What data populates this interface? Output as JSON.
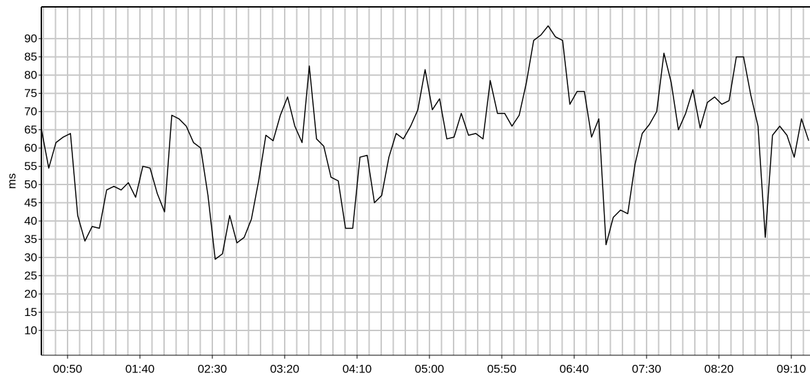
{
  "chart_data": {
    "type": "line",
    "y_label": "ms",
    "color": "#000000",
    "grid": true,
    "xlim": [
      31.9,
      562.9
    ],
    "ylim": [
      3.2,
      98.7
    ],
    "yticks": [
      10,
      15,
      20,
      25,
      30,
      35,
      40,
      45,
      50,
      55,
      60,
      65,
      70,
      75,
      80,
      85,
      90
    ],
    "xticks": [
      {
        "value": 50,
        "label": "00:50"
      },
      {
        "value": 100,
        "label": "01:40"
      },
      {
        "value": 150,
        "label": "02:30"
      },
      {
        "value": 200,
        "label": "03:20"
      },
      {
        "value": 250,
        "label": "04:10"
      },
      {
        "value": 300,
        "label": "05:00"
      },
      {
        "value": 350,
        "label": "05:50"
      },
      {
        "value": 400,
        "label": "06:40"
      },
      {
        "value": 450,
        "label": "07:30"
      },
      {
        "value": 500,
        "label": "08:20"
      },
      {
        "value": 550,
        "label": "09:10"
      }
    ],
    "xminorticks": [
      33.33,
      41.67,
      50,
      58.33,
      66.67,
      75,
      83.33,
      91.67,
      100,
      108.33,
      116.67,
      125,
      133.33,
      141.67,
      150,
      158.33,
      166.67,
      175,
      183.33,
      191.67,
      200,
      208.33,
      216.67,
      225,
      233.33,
      241.67,
      250,
      258.33,
      266.67,
      275,
      283.33,
      291.67,
      300,
      308.33,
      316.67,
      325,
      333.33,
      341.67,
      350,
      358.33,
      366.67,
      375,
      383.33,
      391.67,
      400,
      408.33,
      416.67,
      425,
      433.33,
      441.67,
      450,
      458.33,
      466.67,
      475,
      483.33,
      491.67,
      500,
      508.33,
      516.67,
      525,
      533.33,
      541.67,
      550,
      558.33
    ],
    "x": [
      32,
      37,
      42,
      47,
      52,
      57,
      62,
      67,
      72,
      77,
      82,
      87,
      92,
      97,
      102,
      107,
      112,
      117,
      122,
      127,
      132,
      137,
      142,
      147,
      152,
      157,
      162,
      167,
      172,
      177,
      182,
      187,
      192,
      197,
      202,
      207,
      212,
      217,
      222,
      227,
      232,
      237,
      242,
      247,
      252,
      257,
      262,
      267,
      272,
      277,
      282,
      287,
      292,
      297,
      302,
      307,
      312,
      317,
      322,
      327,
      332,
      337,
      342,
      347,
      352,
      357,
      362,
      367,
      372,
      377,
      382,
      387,
      392,
      397,
      402,
      407,
      412,
      417,
      422,
      427,
      432,
      437,
      442,
      447,
      452,
      457,
      462,
      467,
      472,
      477,
      482,
      487,
      492,
      497,
      502,
      507,
      512,
      517,
      522,
      527,
      532,
      537,
      542,
      547,
      552,
      557,
      562
    ],
    "values": [
      65,
      54.5,
      61.5,
      63,
      64,
      41.5,
      34.5,
      38.5,
      38,
      48.5,
      49.5,
      48.5,
      50.5,
      46.5,
      55,
      54.5,
      47.5,
      42.5,
      69,
      68,
      66,
      61.5,
      60,
      47,
      29.5,
      31,
      41.5,
      34,
      35.5,
      40.5,
      51,
      63.5,
      62,
      69,
      74,
      66,
      61.5,
      82.5,
      62.5,
      60.5,
      52,
      51,
      38,
      38,
      57.5,
      58,
      45,
      47,
      57.5,
      64,
      62.5,
      66,
      70.5,
      81.5,
      70.5,
      73.5,
      62.5,
      63,
      69.5,
      63.5,
      64,
      62.5,
      78.5,
      69.5,
      69.5,
      66,
      69,
      78,
      89.5,
      91,
      93.5,
      90.5,
      89.5,
      72,
      75.5,
      75.5,
      63,
      68,
      33.5,
      41,
      43,
      42,
      55.5,
      64,
      66.5,
      70,
      86,
      78,
      65,
      69.5,
      76,
      65.5,
      72.5,
      74,
      72,
      73,
      85,
      85,
      74.5,
      66,
      35.5,
      63.5,
      66,
      63.5,
      57.5,
      68,
      62
    ]
  }
}
